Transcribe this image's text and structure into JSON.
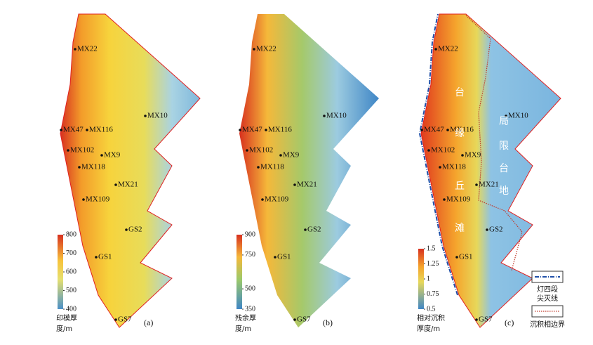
{
  "wells": [
    "MX22",
    "MX10",
    "MX47",
    "MX116",
    "MX102",
    "MX9",
    "MX118",
    "MX21",
    "MX109",
    "GS2",
    "GS1",
    "GS7"
  ],
  "panels": [
    {
      "label": "(a)",
      "colorbar": {
        "title": [
          "印模厚",
          "度/m"
        ],
        "lim": [
          400,
          800
        ],
        "ticks": [
          800,
          700,
          600,
          500,
          400
        ]
      }
    },
    {
      "label": "(b)",
      "colorbar": {
        "title": [
          "残余厚",
          "度/m"
        ],
        "lim": [
          350,
          900
        ],
        "ticks": [
          900,
          750,
          500,
          350
        ]
      }
    },
    {
      "label": "(c)",
      "colorbar": {
        "title": [
          "相对沉积",
          "厚度/m"
        ],
        "lim": [
          0.5,
          1.5
        ],
        "ticks": [
          1.5,
          1.25,
          1,
          0.75,
          0.5
        ]
      }
    }
  ],
  "annotations": [
    "台",
    "缘",
    "丘",
    "滩",
    "局",
    "限",
    "台",
    "地"
  ],
  "legend": {
    "pinchout": [
      "灯四段",
      "尖灭线"
    ],
    "facies_boundary": "沉积相边界"
  }
}
